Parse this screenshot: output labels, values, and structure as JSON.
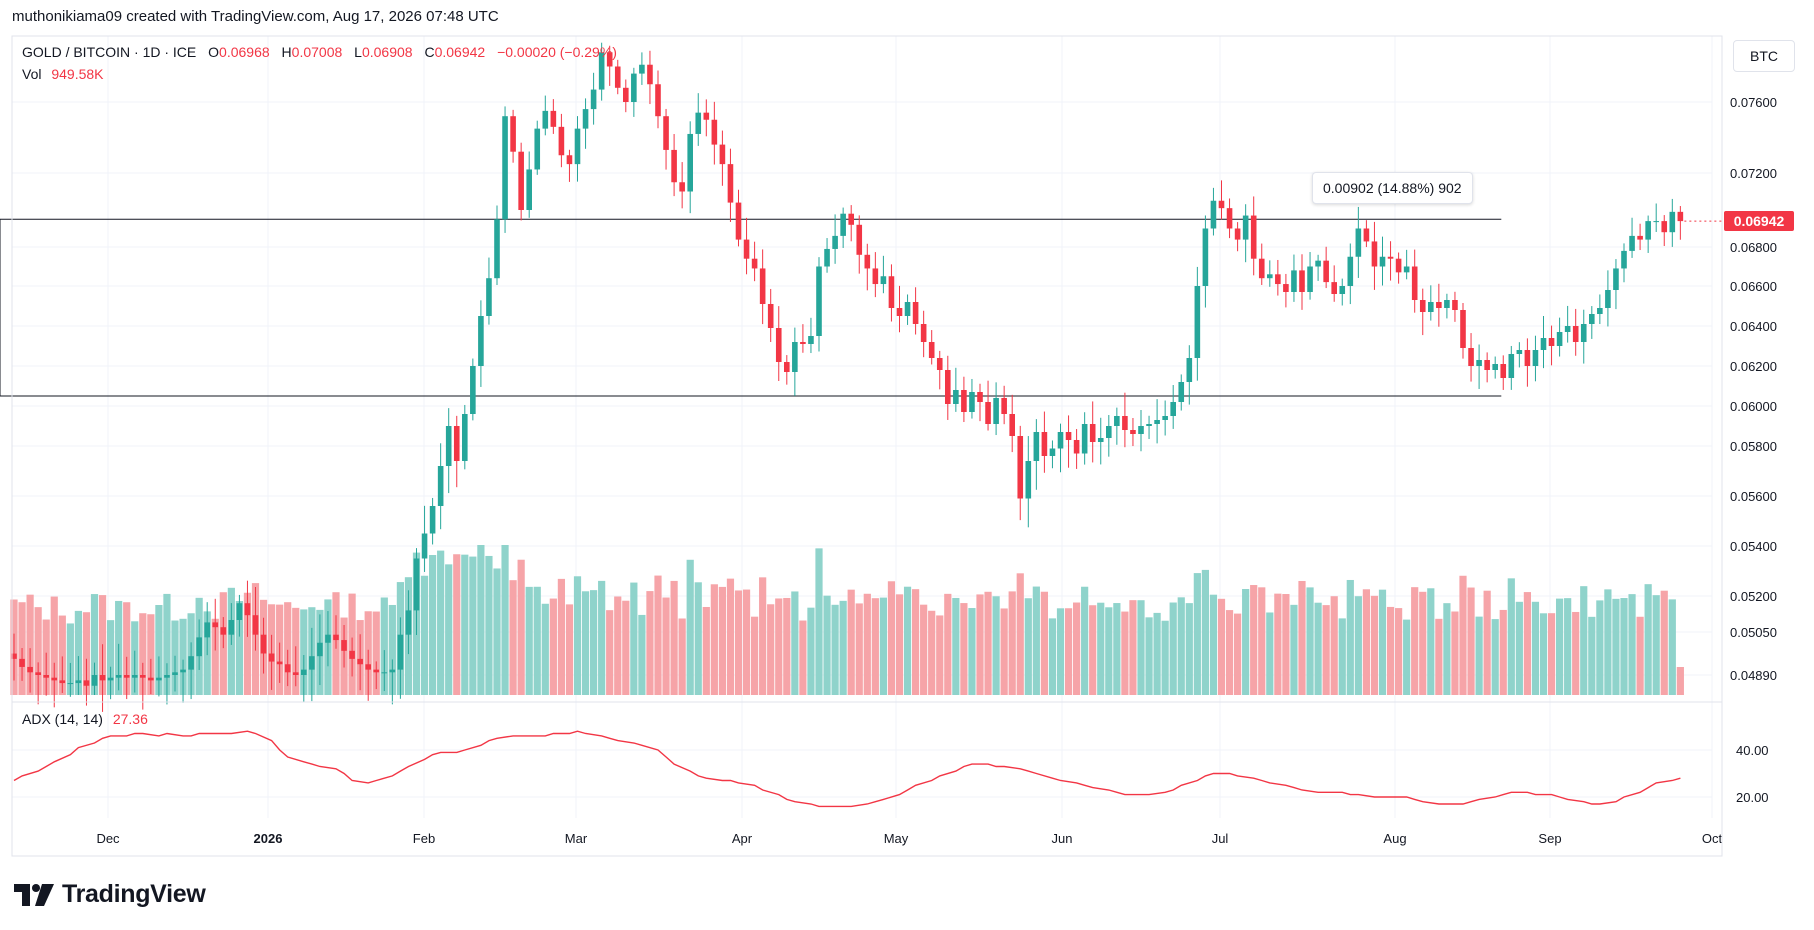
{
  "header": {
    "text": "muthonikiama09 created with TradingView.com, Aug 17, 2026 07:48 UTC"
  },
  "legend": {
    "symbol": "GOLD / BITCOIN · 1D · ICE",
    "open_label": "O",
    "open": "0.06968",
    "high_label": "H",
    "high": "0.07008",
    "low_label": "L",
    "low": "0.06908",
    "close_label": "C",
    "close": "0.06942",
    "change": "−0.00020 (−0.29%)",
    "vol_label": "Vol",
    "vol_value": "949.58K"
  },
  "adx": {
    "label": "ADX (14, 14)",
    "value": "27.36"
  },
  "currency": "BTC",
  "last_price_tag": "0.06942",
  "measure": {
    "label": "0.00902 (14.88%) 902"
  },
  "brand": {
    "name": "TradingView"
  },
  "colors": {
    "up": "#26a69a",
    "down": "#f23645",
    "up_vol": "#8fd3cb",
    "down_vol": "#f6a4a8",
    "adx_line": "#f23645",
    "measure_fill": "#e8f5e2"
  },
  "chart_data": {
    "type": "candlestick",
    "y_ticks": [
      "0.07600",
      "0.07200",
      "0.06800",
      "0.06600",
      "0.06400",
      "0.06200",
      "0.06000",
      "0.05800",
      "0.05600",
      "0.05400",
      "0.05200",
      "0.05050",
      "0.04890"
    ],
    "x_ticks": [
      "Dec",
      "2026",
      "Feb",
      "Mar",
      "Apr",
      "May",
      "Jun",
      "Jul",
      "Aug",
      "Sep",
      "Oct"
    ],
    "adx_ticks": [
      "40.00",
      "20.00"
    ],
    "price_range": [
      0.0489,
      0.079
    ],
    "adx_range": [
      10,
      48
    ],
    "series": {
      "close": [
        0.0495,
        0.0492,
        0.049,
        0.0489,
        0.0488,
        0.0487,
        0.0486,
        0.0486,
        0.0487,
        0.0485,
        0.0489,
        0.0487,
        0.0488,
        0.0489,
        0.0488,
        0.0489,
        0.0488,
        0.0487,
        0.0488,
        0.0489,
        0.049,
        0.0491,
        0.0496,
        0.0503,
        0.0509,
        0.0507,
        0.0504,
        0.051,
        0.0517,
        0.0512,
        0.0504,
        0.0497,
        0.0494,
        0.0493,
        0.049,
        0.0489,
        0.0491,
        0.0496,
        0.0501,
        0.0504,
        0.0502,
        0.0498,
        0.0495,
        0.0493,
        0.0491,
        0.049,
        0.049,
        0.0491,
        0.0504,
        0.0514,
        0.0535,
        0.0545,
        0.0556,
        0.0572,
        0.059,
        0.0574,
        0.0596,
        0.062,
        0.0645,
        0.0664,
        0.0695,
        0.0752,
        0.0732,
        0.07,
        0.0722,
        0.0745,
        0.0755,
        0.0746,
        0.073,
        0.0725,
        0.0745,
        0.0756,
        0.0767,
        0.0788,
        0.078,
        0.0768,
        0.076,
        0.0776,
        0.0781,
        0.077,
        0.0752,
        0.0733,
        0.0715,
        0.071,
        0.0742,
        0.0754,
        0.075,
        0.0736,
        0.0725,
        0.0704,
        0.0684,
        0.0674,
        0.0669,
        0.0651,
        0.0639,
        0.0622,
        0.0617,
        0.0632,
        0.0631,
        0.0635,
        0.067,
        0.0679,
        0.0686,
        0.0698,
        0.0692,
        0.0676,
        0.0669,
        0.0661,
        0.0665,
        0.0649,
        0.0645,
        0.0652,
        0.0641,
        0.0632,
        0.0624,
        0.0618,
        0.0601,
        0.0608,
        0.0597,
        0.0607,
        0.0602,
        0.0591,
        0.0604,
        0.0596,
        0.0585,
        0.0559,
        0.0574,
        0.0587,
        0.0576,
        0.0579,
        0.0587,
        0.0583,
        0.0577,
        0.0591,
        0.0582,
        0.0584,
        0.059,
        0.0595,
        0.0588,
        0.0586,
        0.059,
        0.0591,
        0.0593,
        0.0595,
        0.0602,
        0.0612,
        0.0624,
        0.066,
        0.069,
        0.0705,
        0.0701,
        0.069,
        0.0684,
        0.0697,
        0.0674,
        0.0664,
        0.0666,
        0.0661,
        0.0657,
        0.0668,
        0.0657,
        0.067,
        0.0673,
        0.0662,
        0.0656,
        0.066,
        0.0675,
        0.069,
        0.0683,
        0.067,
        0.0675,
        0.0674,
        0.0667,
        0.067,
        0.0653,
        0.0647,
        0.0652,
        0.0649,
        0.0653,
        0.0648,
        0.0629,
        0.062,
        0.0623,
        0.0618,
        0.0621,
        0.0614,
        0.0626,
        0.0628,
        0.062,
        0.0628,
        0.0634,
        0.063,
        0.0637,
        0.064,
        0.0632,
        0.0641,
        0.0646,
        0.0649,
        0.0658,
        0.0669,
        0.0678,
        0.0686,
        0.0684,
        0.0694,
        0.0694,
        0.0688,
        0.0699,
        0.0694
      ]
    },
    "adx_values": [
      27,
      29,
      31,
      33,
      35,
      38,
      41,
      43,
      45,
      46,
      46,
      47,
      47,
      46,
      47,
      46,
      46,
      47,
      47,
      47,
      47,
      48,
      47,
      44,
      40,
      37,
      35,
      34,
      33,
      32,
      30,
      27,
      26,
      27,
      29,
      31,
      33,
      36,
      38,
      39,
      39,
      40,
      42,
      44,
      45,
      46,
      46,
      46,
      46,
      47,
      47,
      48,
      47,
      46,
      45,
      44,
      43,
      42,
      40,
      37,
      34,
      31,
      29,
      28,
      27,
      27,
      26,
      25,
      23,
      21,
      19,
      18,
      17,
      16,
      16,
      16,
      16,
      17,
      18,
      19,
      21,
      23,
      25,
      27,
      29,
      31,
      33,
      34,
      34,
      33,
      33,
      32,
      31,
      30,
      28,
      27,
      26,
      25,
      24,
      23,
      22,
      21,
      21,
      21,
      22,
      23,
      25,
      27,
      29,
      30,
      30,
      29,
      28,
      27,
      26,
      25,
      24,
      23,
      22,
      22,
      22,
      21,
      21,
      20,
      20,
      20,
      20,
      19,
      18,
      17,
      17,
      17,
      18,
      19,
      20,
      21,
      22,
      22,
      21,
      21,
      20,
      19,
      18,
      17,
      17,
      18,
      20,
      22,
      24,
      26,
      27,
      28
    ]
  }
}
